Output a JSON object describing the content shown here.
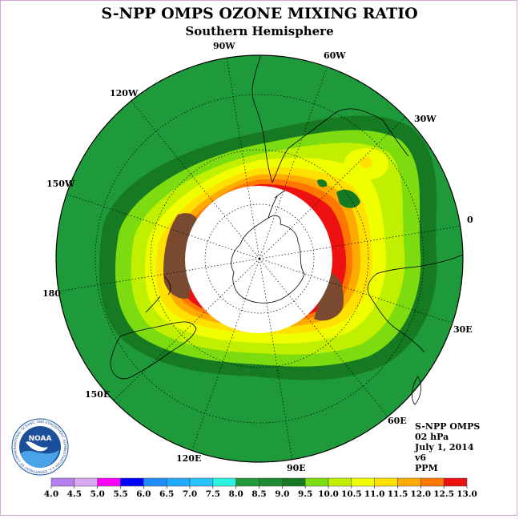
{
  "title": "S-NPP OMPS OZONE MIXING RATIO",
  "subtitle": "Southern Hemisphere",
  "longitude_labels": [
    "90W",
    "60W",
    "30W",
    "0",
    "30E",
    "60E",
    "90E",
    "120E",
    "150E",
    "180",
    "150W",
    "120W"
  ],
  "info": {
    "instrument": "S-NPP OMPS",
    "level": "02 hPa",
    "date": "July 1, 2014",
    "version": "v6",
    "units": "PPM"
  },
  "logo": {
    "name": "NOAA",
    "ring_text": "NATIONAL OCEANIC AND ATMOSPHERIC ADMINISTRATION U.S. DEPARTMENT OF COMMERCE"
  },
  "legend": {
    "ticks": [
      "4.0",
      "4.5",
      "5.0",
      "5.5",
      "6.0",
      "6.5",
      "7.0",
      "7.5",
      "8.0",
      "8.5",
      "9.0",
      "9.5",
      "10.0",
      "10.5",
      "11.0",
      "11.5",
      "12.0",
      "12.5",
      "13.0"
    ],
    "colors": [
      "#b57ff0",
      "#d9a8f5",
      "#ff00ff",
      "#0000ff",
      "#1e8cff",
      "#22aaff",
      "#27c4ff",
      "#2cf0e0",
      "#1f9a3a",
      "#1c8a2e",
      "#157a22",
      "#7ddc10",
      "#c0f000",
      "#f0ff00",
      "#ffe000",
      "#ffaa00",
      "#ff7700",
      "#ee1111",
      "#7a4a30"
    ]
  },
  "colors": {
    "frame_border": "#d9a3d9",
    "ocean_green": "#1f9a3a"
  }
}
